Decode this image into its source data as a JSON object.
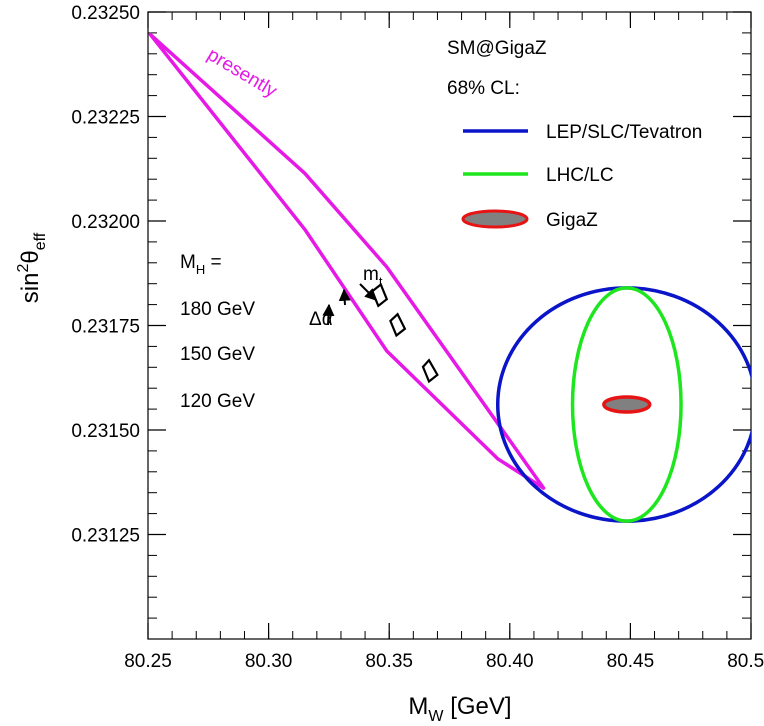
{
  "chart_data": {
    "type": "contour",
    "title": "",
    "xaxis": {
      "label_main": "M",
      "label_sub": "W",
      "label_unit": " [GeV]",
      "range": [
        80.25,
        80.5
      ],
      "ticks": [
        80.25,
        80.3,
        80.35,
        80.4,
        80.45,
        80.5
      ],
      "tick_labels": [
        "80.25",
        "80.30",
        "80.35",
        "80.40",
        "80.45",
        "80.50"
      ]
    },
    "yaxis": {
      "label_pre": "sin",
      "label_sup": "2",
      "label_theta": "θ",
      "label_sub": "eff",
      "range": [
        0.231,
        0.2325
      ],
      "ticks": [
        0.23125,
        0.2315,
        0.23175,
        0.232,
        0.23225,
        0.2325
      ],
      "tick_labels": [
        "0.23125",
        "0.23150",
        "0.23175",
        "0.23200",
        "0.23225",
        "0.23250"
      ]
    },
    "legend": {
      "title": "SM@GigaZ",
      "subtitle": "68% CL:",
      "placement": "top-right",
      "entries": [
        {
          "name": "LEP/SLC/Tevatron",
          "color": "#0a14c8",
          "style": "line"
        },
        {
          "name": "LHC/LC",
          "color": "#1ee61e",
          "style": "line"
        },
        {
          "name": "GigaZ",
          "color": "#e61414",
          "fill": "#808080",
          "style": "filled-ellipse"
        }
      ]
    },
    "series": [
      {
        "name": "presently",
        "color": "#e619e6",
        "shape": "polygon",
        "points": [
          [
            80.251,
            0.232446
          ],
          [
            80.315,
            0.232114
          ],
          [
            80.349,
            0.23189
          ],
          [
            80.414,
            0.231361
          ],
          [
            80.395,
            0.231431
          ],
          [
            80.349,
            0.231689
          ],
          [
            80.315,
            0.23198
          ],
          [
            80.251,
            0.232446
          ]
        ]
      },
      {
        "name": "LEP/SLC/Tevatron",
        "color": "#0a14c8",
        "shape": "ellipse",
        "center": [
          80.4485,
          0.231561
        ],
        "semi_axes": [
          0.0535,
          0.000279
        ]
      },
      {
        "name": "LHC/LC",
        "color": "#1ee61e",
        "shape": "ellipse",
        "center": [
          80.4485,
          0.231561
        ],
        "semi_axes": [
          0.0225,
          0.000279
        ]
      },
      {
        "name": "GigaZ",
        "color": "#e61414",
        "fill": "#808080",
        "shape": "ellipse",
        "center": [
          80.4485,
          0.231561
        ],
        "semi_axes": [
          0.0095,
          1.8e-05
        ]
      }
    ],
    "sm_predictions": [
      {
        "label": "180 GeV",
        "points": [
          [
            80.3465,
            0.231848
          ],
          [
            80.349,
            0.231813
          ],
          [
            80.3455,
            0.231797
          ],
          [
            80.343,
            0.231832
          ]
        ]
      },
      {
        "label": "150 GeV",
        "points": [
          [
            80.3535,
            0.231777
          ],
          [
            80.3565,
            0.231742
          ],
          [
            80.353,
            0.231726
          ],
          [
            80.3505,
            0.231761
          ]
        ]
      },
      {
        "label": "120 GeV",
        "points": [
          [
            80.3665,
            0.231667
          ],
          [
            80.37,
            0.231632
          ],
          [
            80.3665,
            0.231616
          ],
          [
            80.364,
            0.231651
          ]
        ]
      }
    ],
    "annotations": {
      "curve_label": "presently",
      "mh_label_main": "M",
      "mh_label_sub": "H",
      "mh_label_tail": " =",
      "mh_values": [
        "180 GeV",
        "150 GeV",
        "120 GeV"
      ],
      "mt_main": "m",
      "mt_sub": "t",
      "delta_alpha": "Δα"
    }
  }
}
